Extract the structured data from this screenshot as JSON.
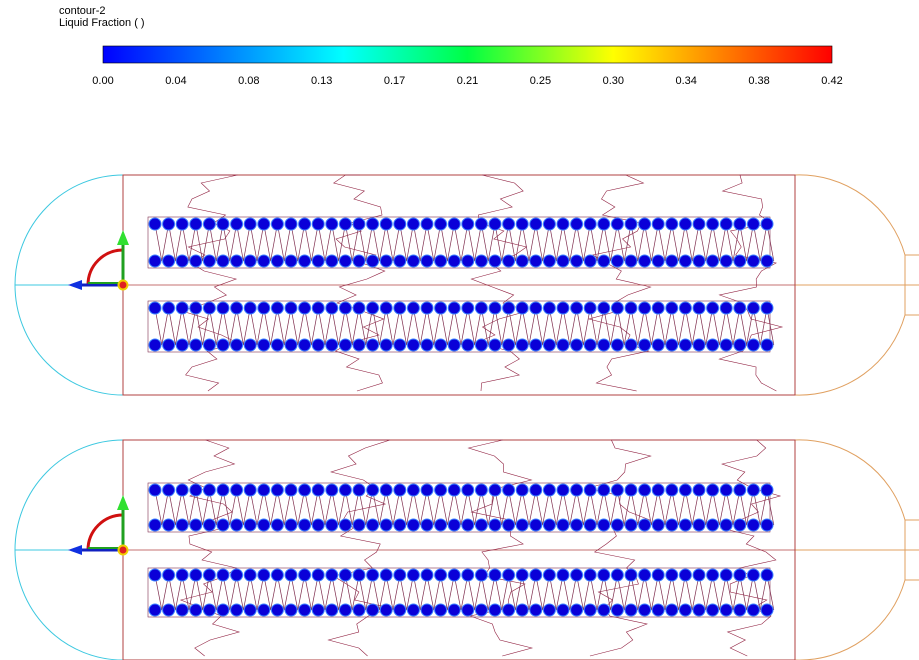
{
  "header": {
    "name": "contour-2",
    "quantity": "Liquid Fraction ( )"
  },
  "colorbar": {
    "ticks": [
      "0.00",
      "0.04",
      "0.08",
      "0.13",
      "0.17",
      "0.21",
      "0.25",
      "0.30",
      "0.34",
      "0.38",
      "0.42"
    ]
  }
}
